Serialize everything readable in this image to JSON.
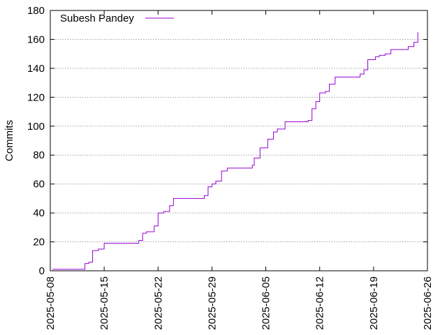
{
  "chart_data": {
    "type": "line",
    "title": "",
    "xlabel": "",
    "ylabel": "Commits",
    "xlim": [
      "2025-05-08",
      "2025-06-26"
    ],
    "ylim": [
      0,
      180
    ],
    "x_ticks": [
      "2025-05-08",
      "2025-05-15",
      "2025-05-22",
      "2025-05-29",
      "2025-06-05",
      "2025-06-12",
      "2025-06-19",
      "2025-06-26"
    ],
    "y_ticks": [
      0,
      20,
      40,
      60,
      80,
      100,
      120,
      140,
      160,
      180
    ],
    "grid": true,
    "legend": {
      "placement": "top-left"
    },
    "series": [
      {
        "name": "Subesh Pandey",
        "color": "#9400d3",
        "step": true,
        "x": [
          "2025-05-08T06:00",
          "2025-05-12T12:00",
          "2025-05-13T00:00",
          "2025-05-13T12:00",
          "2025-05-14T06:00",
          "2025-05-15T00:00",
          "2025-05-19T12:00",
          "2025-05-20T00:00",
          "2025-05-20T12:00",
          "2025-05-21T12:00",
          "2025-05-22T00:00",
          "2025-05-22T18:00",
          "2025-05-23T12:00",
          "2025-05-24T00:00",
          "2025-05-28T00:00",
          "2025-05-28T12:00",
          "2025-05-29T00:00",
          "2025-05-29T12:00",
          "2025-05-30T06:00",
          "2025-05-31T00:00",
          "2025-06-03T06:00",
          "2025-06-03T12:00",
          "2025-06-04T06:00",
          "2025-06-05T06:00",
          "2025-06-06T00:00",
          "2025-06-06T12:00",
          "2025-06-07T12:00",
          "2025-06-10T12:00",
          "2025-06-11T00:00",
          "2025-06-11T12:00",
          "2025-06-12T00:00",
          "2025-06-12T18:00",
          "2025-06-13T06:00",
          "2025-06-14T00:00",
          "2025-06-17T06:00",
          "2025-06-17T18:00",
          "2025-06-18T06:00",
          "2025-06-19T06:00",
          "2025-06-19T18:00",
          "2025-06-20T12:00",
          "2025-06-21T06:00",
          "2025-06-23T12:00",
          "2025-06-24T06:00",
          "2025-06-24T18:00"
        ],
        "values": [
          1,
          5,
          6,
          14,
          15,
          19,
          21,
          26,
          27,
          31,
          40,
          41,
          45,
          50,
          52,
          58,
          60,
          62,
          69,
          71,
          73,
          78,
          85,
          91,
          96,
          98,
          103,
          104,
          112,
          117,
          123,
          124,
          129,
          134,
          136,
          139,
          146,
          148,
          149,
          150,
          153,
          155,
          158,
          165
        ]
      }
    ]
  }
}
